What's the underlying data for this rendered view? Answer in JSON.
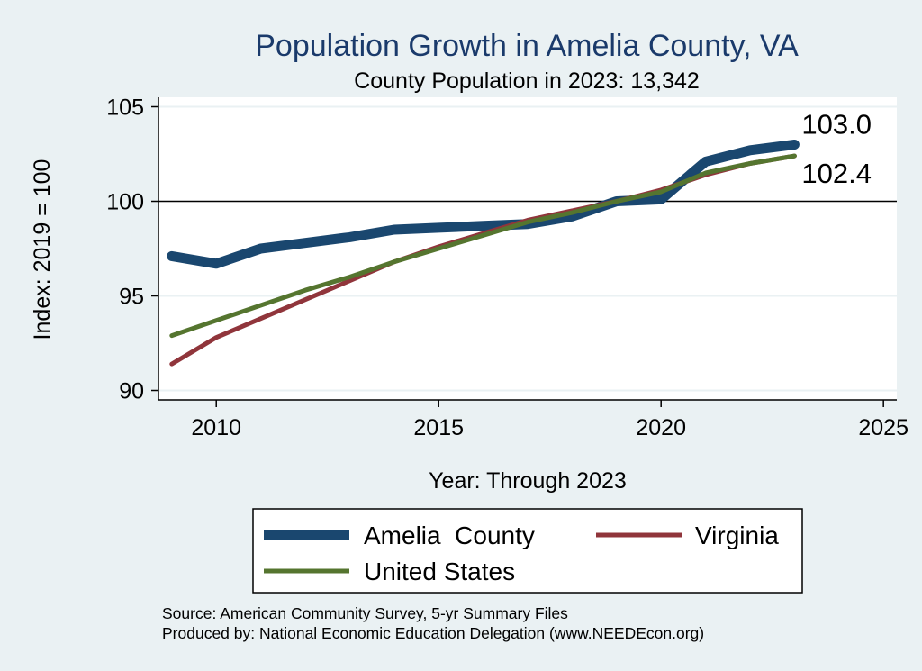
{
  "title": "Population Growth in Amelia County, VA",
  "subtitle": "County Population in 2023: 13,342",
  "source_lines": [
    "Source: American Community Survey, 5-yr Summary Files",
    "Produced by: National Economic Education Delegation (www.NEEDEcon.org)"
  ],
  "chart_data": {
    "type": "line",
    "xlabel": "Year: Through 2023",
    "ylabel": "Index: 2019 = 100",
    "xlim": [
      2008.7,
      2025.3
    ],
    "ylim": [
      89.5,
      105.5
    ],
    "xticks": [
      2010,
      2015,
      2020,
      2025
    ],
    "yticks": [
      90,
      95,
      100,
      105
    ],
    "reference_line": 100,
    "grid": "horizontal",
    "legend_position": "bottom",
    "series": [
      {
        "name": "Amelia  County",
        "color": "#1a476f",
        "x": [
          2009,
          2010,
          2011,
          2012,
          2013,
          2014,
          2015,
          2016,
          2017,
          2018,
          2019,
          2020,
          2021,
          2022,
          2023
        ],
        "values": [
          97.1,
          96.7,
          97.5,
          97.8,
          98.1,
          98.5,
          98.6,
          98.7,
          98.8,
          99.2,
          100.0,
          100.1,
          102.1,
          102.7,
          103.0
        ]
      },
      {
        "name": "Virginia",
        "color": "#90353b",
        "x": [
          2009,
          2010,
          2011,
          2012,
          2013,
          2014,
          2015,
          2016,
          2017,
          2018,
          2019,
          2020,
          2021,
          2022,
          2023
        ],
        "values": [
          91.4,
          92.8,
          93.8,
          94.8,
          95.8,
          96.8,
          97.6,
          98.3,
          99.0,
          99.5,
          100.0,
          100.6,
          101.4,
          102.0,
          102.4
        ]
      },
      {
        "name": "United States",
        "color": "#55752f",
        "x": [
          2009,
          2010,
          2011,
          2012,
          2013,
          2014,
          2015,
          2016,
          2017,
          2018,
          2019,
          2020,
          2021,
          2022,
          2023
        ],
        "values": [
          92.9,
          93.7,
          94.5,
          95.3,
          96.0,
          96.8,
          97.5,
          98.2,
          98.9,
          99.4,
          100.0,
          100.5,
          101.5,
          102.0,
          102.4
        ]
      }
    ],
    "end_labels": [
      "103.0",
      "102.4"
    ]
  }
}
